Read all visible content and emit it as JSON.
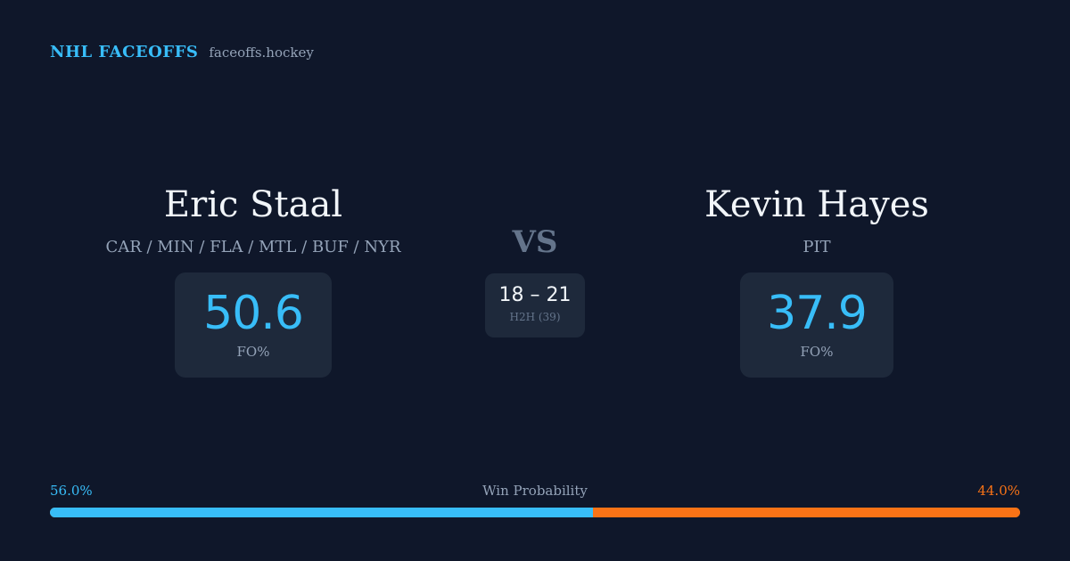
{
  "brand": {
    "title": "NHL FACEOFFS",
    "domain": "faceoffs.hockey"
  },
  "player_left": {
    "name": "Eric Staal",
    "teams": "CAR / MIN / FLA / MTL / BUF / NYR",
    "fo_pct": "50.6",
    "fo_label": "FO%"
  },
  "versus": "VS",
  "head_to_head": {
    "score": "18 – 21",
    "label": "H2H (39)"
  },
  "player_right": {
    "name": "Kevin Hayes",
    "teams": "PIT",
    "fo_pct": "37.9",
    "fo_label": "FO%"
  },
  "win_probability": {
    "title": "Win Probability",
    "left_label": "56.0%",
    "right_label": "44.0%",
    "left_value": 0.56,
    "right_value": 0.44
  },
  "colors": {
    "background": "#0f172a",
    "card": "#1e293b",
    "accent_blue": "#38bdf8",
    "accent_orange": "#f97316",
    "muted": "#94a3b8"
  }
}
